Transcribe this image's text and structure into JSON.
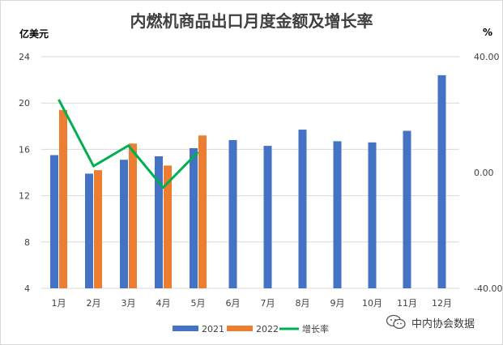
{
  "chart_data": {
    "type": "bar",
    "title": "内燃机商品出口月度金额及增长率",
    "ylabel_left": "亿美元",
    "ylabel_right": "%",
    "categories": [
      "1月",
      "2月",
      "3月",
      "4月",
      "5月",
      "6月",
      "7月",
      "8月",
      "9月",
      "10月",
      "11月",
      "12月"
    ],
    "series": [
      {
        "name": "2021",
        "kind": "bar",
        "axis": "left",
        "color": "#4472c4",
        "values": [
          15.5,
          13.9,
          15.1,
          15.4,
          16.1,
          16.8,
          16.3,
          17.7,
          16.7,
          16.6,
          17.6,
          22.4
        ]
      },
      {
        "name": "2022",
        "kind": "bar",
        "axis": "left",
        "color": "#ed7d31",
        "values": [
          19.4,
          14.2,
          16.5,
          14.6,
          17.2,
          null,
          null,
          null,
          null,
          null,
          null,
          null
        ]
      },
      {
        "name": "增长率",
        "kind": "line",
        "axis": "right",
        "color": "#00b050",
        "values": [
          25.2,
          2.2,
          9.3,
          -5.2,
          7.1,
          null,
          null,
          null,
          null,
          null,
          null,
          null
        ]
      }
    ],
    "y_left": {
      "min": 4,
      "max": 24,
      "ticks": [
        "4",
        "8",
        "12",
        "16",
        "20",
        "24"
      ]
    },
    "y_right": {
      "min": -40,
      "max": 40,
      "ticks": [
        "-40.00",
        "0.00",
        "40.00"
      ]
    },
    "grid": true,
    "legend_position": "bottom"
  },
  "watermark": {
    "text": "中内协会数据",
    "icon": "wechat-icon"
  }
}
